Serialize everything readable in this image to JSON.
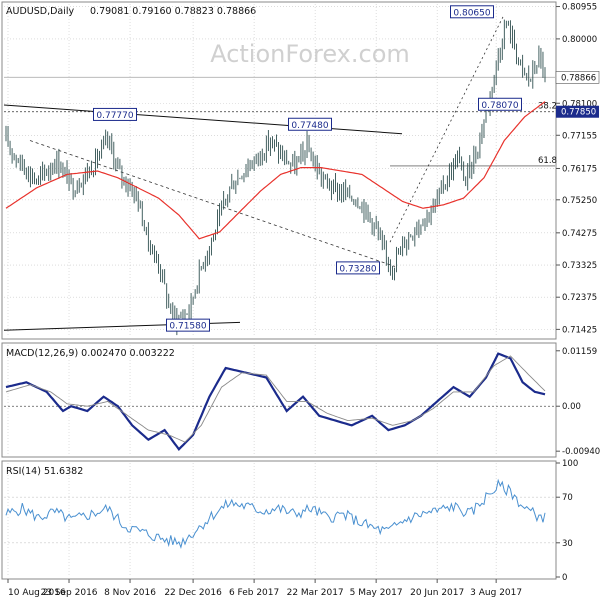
{
  "colors": {
    "price": "#2f4f4f",
    "sma": "#e8322c",
    "macd": "#1b2b8c",
    "signal": "#8a8a8a",
    "rsi": "#4a90d0",
    "trend": "#111111",
    "grid": "#c8c8c8",
    "current_tag": "#1b2b8c",
    "tag_fill": "#ffffff",
    "text": "#111111",
    "watermark": "#d0d0d0"
  },
  "watermark": "ActionForex.com",
  "chart_data": [
    {
      "type": "candlestick",
      "title": "AUDUSD,Daily",
      "ohlc_header": "0.79081 0.79160 0.78823 0.78866",
      "y_ticks": [
        {
          "value": 0.80955,
          "label": "0.80955"
        },
        {
          "value": 0.8,
          "label": "0.80000"
        },
        {
          "value": 0.78866,
          "label": "0.78866",
          "current": true
        },
        {
          "value": 0.781,
          "label": "0.78100"
        },
        {
          "value": 0.7785,
          "label": "0.77850",
          "tag": true
        },
        {
          "value": 0.77155,
          "label": "0.77155"
        },
        {
          "value": 0.76175,
          "label": "0.76175"
        },
        {
          "value": 0.7525,
          "label": "0.75250"
        },
        {
          "value": 0.74275,
          "label": "0.74275"
        },
        {
          "value": 0.73325,
          "label": "0.73325"
        },
        {
          "value": 0.72375,
          "label": "0.72375"
        },
        {
          "value": 0.71425,
          "label": "0.71425"
        }
      ],
      "x_labels": [
        "10 Aug 2016",
        "23 Sep 2016",
        "8 Nov 2016",
        "22 Dec 2016",
        "6 Feb 2017",
        "22 Mar 2017",
        "5 May 2017",
        "20 Jun 2017",
        "3 Aug 2017"
      ],
      "annotations": [
        {
          "label": "0.77770",
          "value": 0.7777
        },
        {
          "label": "0.71580",
          "value": 0.7158
        },
        {
          "label": "0.77480",
          "value": 0.7748
        },
        {
          "label": "0.73280",
          "value": 0.7328
        },
        {
          "label": "0.80650",
          "value": 0.8065
        },
        {
          "label": "0.78070",
          "value": 0.7807
        }
      ],
      "fib_levels": [
        {
          "label": "38.2",
          "value": 0.7785
        },
        {
          "label": "61.8",
          "value": 0.7625
        }
      ],
      "series": [
        {
          "name": "Price",
          "anchors": [
            [
              0,
              0.77
            ],
            [
              5,
              0.765
            ],
            [
              15,
              0.758
            ],
            [
              25,
              0.764
            ],
            [
              33,
              0.756
            ],
            [
              42,
              0.762
            ],
            [
              50,
              0.77
            ],
            [
              56,
              0.76
            ],
            [
              64,
              0.754
            ],
            [
              70,
              0.74
            ],
            [
              76,
              0.732
            ],
            [
              80,
              0.721
            ],
            [
              84,
              0.717
            ],
            [
              90,
              0.72
            ],
            [
              96,
              0.733
            ],
            [
              102,
              0.742
            ],
            [
              110,
              0.756
            ],
            [
              118,
              0.762
            ],
            [
              124,
              0.765
            ],
            [
              130,
              0.77
            ],
            [
              136,
              0.765
            ],
            [
              142,
              0.762
            ],
            [
              148,
              0.768
            ],
            [
              154,
              0.76
            ],
            [
              160,
              0.756
            ],
            [
              168,
              0.754
            ],
            [
              174,
              0.752
            ],
            [
              182,
              0.744
            ],
            [
              186,
              0.736
            ],
            [
              190,
              0.733
            ],
            [
              196,
              0.74
            ],
            [
              202,
              0.745
            ],
            [
              210,
              0.75
            ],
            [
              216,
              0.758
            ],
            [
              222,
              0.765
            ],
            [
              226,
              0.758
            ],
            [
              232,
              0.768
            ],
            [
              238,
              0.784
            ],
            [
              242,
              0.795
            ],
            [
              246,
              0.805
            ],
            [
              250,
              0.798
            ],
            [
              254,
              0.79
            ],
            [
              258,
              0.788
            ],
            [
              262,
              0.795
            ],
            [
              265,
              0.789
            ]
          ]
        },
        {
          "name": "SMA",
          "anchors": [
            [
              0,
              0.75
            ],
            [
              15,
              0.756
            ],
            [
              30,
              0.76
            ],
            [
              45,
              0.761
            ],
            [
              55,
              0.759
            ],
            [
              65,
              0.756
            ],
            [
              75,
              0.753
            ],
            [
              85,
              0.748
            ],
            [
              95,
              0.741
            ],
            [
              105,
              0.743
            ],
            [
              115,
              0.749
            ],
            [
              125,
              0.755
            ],
            [
              135,
              0.76
            ],
            [
              145,
              0.762
            ],
            [
              155,
              0.762
            ],
            [
              165,
              0.761
            ],
            [
              175,
              0.76
            ],
            [
              185,
              0.756
            ],
            [
              195,
              0.752
            ],
            [
              205,
              0.75
            ],
            [
              215,
              0.751
            ],
            [
              225,
              0.753
            ],
            [
              235,
              0.759
            ],
            [
              245,
              0.77
            ],
            [
              255,
              0.777
            ],
            [
              265,
              0.7815
            ]
          ]
        }
      ]
    },
    {
      "type": "line",
      "title": "MACD(12,26,9) 0.002470 0.003222",
      "y_ticks": [
        {
          "value": 0.01159,
          "label": "0.01159"
        },
        {
          "value": 0.0,
          "label": "0.00"
        },
        {
          "value": -0.0094,
          "label": "-0.00940"
        }
      ],
      "series": [
        {
          "name": "MACD",
          "anchors": [
            [
              0,
              0.004
            ],
            [
              10,
              0.005
            ],
            [
              20,
              0.003
            ],
            [
              28,
              -0.001
            ],
            [
              32,
              0.0
            ],
            [
              40,
              -0.001
            ],
            [
              48,
              0.002
            ],
            [
              55,
              0.0
            ],
            [
              62,
              -0.004
            ],
            [
              70,
              -0.007
            ],
            [
              78,
              -0.005
            ],
            [
              85,
              -0.009
            ],
            [
              92,
              -0.006
            ],
            [
              100,
              0.002
            ],
            [
              108,
              0.008
            ],
            [
              118,
              0.007
            ],
            [
              128,
              0.006
            ],
            [
              138,
              -0.001
            ],
            [
              146,
              0.002
            ],
            [
              154,
              -0.002
            ],
            [
              162,
              -0.003
            ],
            [
              170,
              -0.004
            ],
            [
              180,
              -0.002
            ],
            [
              188,
              -0.005
            ],
            [
              196,
              -0.004
            ],
            [
              204,
              -0.002
            ],
            [
              212,
              0.001
            ],
            [
              220,
              0.004
            ],
            [
              228,
              0.002
            ],
            [
              236,
              0.006
            ],
            [
              242,
              0.011
            ],
            [
              248,
              0.01
            ],
            [
              254,
              0.005
            ],
            [
              260,
              0.003
            ],
            [
              265,
              0.0025
            ]
          ]
        },
        {
          "name": "Signal",
          "anchors": [
            [
              0,
              0.003
            ],
            [
              12,
              0.0045
            ],
            [
              22,
              0.003
            ],
            [
              30,
              0.0005
            ],
            [
              40,
              0.0
            ],
            [
              50,
              0.001
            ],
            [
              60,
              -0.002
            ],
            [
              70,
              -0.005
            ],
            [
              80,
              -0.006
            ],
            [
              88,
              -0.0075
            ],
            [
              96,
              -0.004
            ],
            [
              106,
              0.004
            ],
            [
              116,
              0.007
            ],
            [
              128,
              0.0065
            ],
            [
              138,
              0.001
            ],
            [
              148,
              0.001
            ],
            [
              158,
              -0.0015
            ],
            [
              168,
              -0.003
            ],
            [
              180,
              -0.0025
            ],
            [
              190,
              -0.004
            ],
            [
              200,
              -0.003
            ],
            [
              210,
              -0.0005
            ],
            [
              220,
              0.003
            ],
            [
              230,
              0.003
            ],
            [
              240,
              0.0085
            ],
            [
              248,
              0.0105
            ],
            [
              256,
              0.007
            ],
            [
              265,
              0.0032
            ]
          ]
        }
      ]
    },
    {
      "type": "line",
      "title": "RSI(14) 51.6382",
      "y_ticks": [
        {
          "value": 100,
          "label": "100"
        },
        {
          "value": 70,
          "label": "70"
        },
        {
          "value": 30,
          "label": "30"
        },
        {
          "value": 0,
          "label": "0"
        }
      ],
      "series": [
        {
          "name": "RSI",
          "anchors": [
            [
              0,
              55
            ],
            [
              8,
              60
            ],
            [
              16,
              52
            ],
            [
              24,
              57
            ],
            [
              32,
              50
            ],
            [
              40,
              54
            ],
            [
              50,
              60
            ],
            [
              58,
              45
            ],
            [
              66,
              40
            ],
            [
              74,
              35
            ],
            [
              80,
              32
            ],
            [
              86,
              30
            ],
            [
              94,
              42
            ],
            [
              102,
              55
            ],
            [
              110,
              65
            ],
            [
              118,
              62
            ],
            [
              126,
              58
            ],
            [
              134,
              60
            ],
            [
              142,
              55
            ],
            [
              150,
              60
            ],
            [
              158,
              52
            ],
            [
              166,
              55
            ],
            [
              174,
              48
            ],
            [
              182,
              42
            ],
            [
              188,
              40
            ],
            [
              196,
              50
            ],
            [
              204,
              55
            ],
            [
              212,
              58
            ],
            [
              220,
              62
            ],
            [
              228,
              55
            ],
            [
              236,
              70
            ],
            [
              242,
              80
            ],
            [
              248,
              75
            ],
            [
              254,
              62
            ],
            [
              260,
              55
            ],
            [
              265,
              52
            ]
          ]
        }
      ]
    }
  ]
}
